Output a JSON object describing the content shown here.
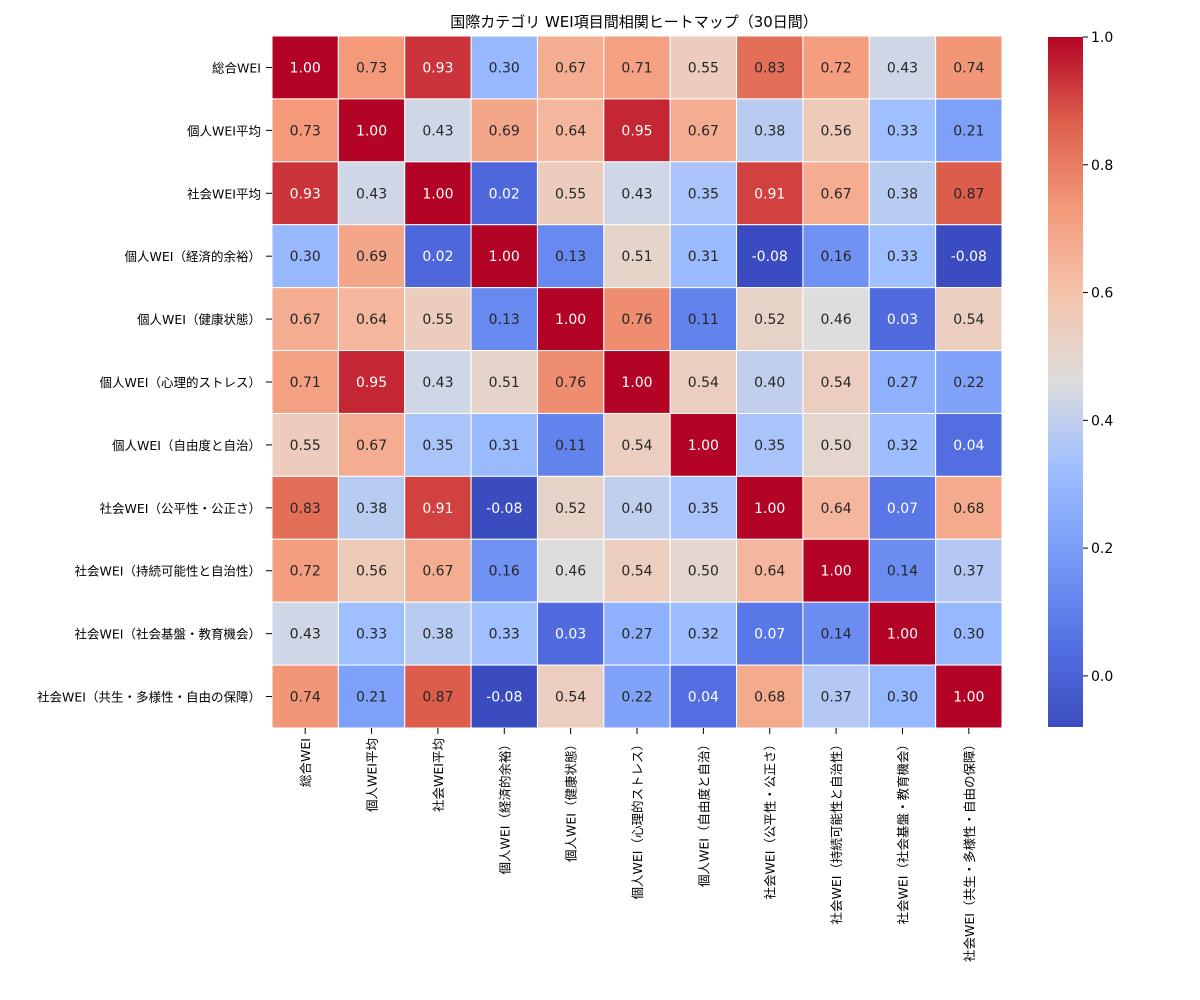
{
  "chart_data": {
    "type": "heatmap",
    "title": "国際カテゴリ WEI項目間相関ヒートマップ（30日間）",
    "labels": [
      "総合WEI",
      "個人WEI平均",
      "社会WEI平均",
      "個人WEI（経済的余裕）",
      "個人WEI（健康状態）",
      "個人WEI（心理的ストレス）",
      "個人WEI（自由度と自治）",
      "社会WEI（公平性・公正さ）",
      "社会WEI（持続可能性と自治性）",
      "社会WEI（社会基盤・教育機会）",
      "社会WEI（共生・多様性・自由の保障）"
    ],
    "matrix": [
      [
        1.0,
        0.73,
        0.93,
        0.3,
        0.67,
        0.71,
        0.55,
        0.83,
        0.72,
        0.43,
        0.74
      ],
      [
        0.73,
        1.0,
        0.43,
        0.69,
        0.64,
        0.95,
        0.67,
        0.38,
        0.56,
        0.33,
        0.21
      ],
      [
        0.93,
        0.43,
        1.0,
        0.02,
        0.55,
        0.43,
        0.35,
        0.91,
        0.67,
        0.38,
        0.87
      ],
      [
        0.3,
        0.69,
        0.02,
        1.0,
        0.13,
        0.51,
        0.31,
        -0.08,
        0.16,
        0.33,
        -0.08
      ],
      [
        0.67,
        0.64,
        0.55,
        0.13,
        1.0,
        0.76,
        0.11,
        0.52,
        0.46,
        0.03,
        0.54
      ],
      [
        0.71,
        0.95,
        0.43,
        0.51,
        0.76,
        1.0,
        0.54,
        0.4,
        0.54,
        0.27,
        0.22
      ],
      [
        0.55,
        0.67,
        0.35,
        0.31,
        0.11,
        0.54,
        1.0,
        0.35,
        0.5,
        0.32,
        0.04
      ],
      [
        0.83,
        0.38,
        0.91,
        -0.08,
        0.52,
        0.4,
        0.35,
        1.0,
        0.64,
        0.07,
        0.68
      ],
      [
        0.72,
        0.56,
        0.67,
        0.16,
        0.46,
        0.54,
        0.5,
        0.64,
        1.0,
        0.14,
        0.37
      ],
      [
        0.43,
        0.33,
        0.38,
        0.33,
        0.03,
        0.27,
        0.32,
        0.07,
        0.14,
        1.0,
        0.3
      ],
      [
        0.74,
        0.21,
        0.87,
        -0.08,
        0.54,
        0.22,
        0.04,
        0.68,
        0.37,
        0.3,
        1.0
      ]
    ],
    "value_range": [
      -0.08,
      1.0
    ],
    "colormap": "coolwarm",
    "colorbar_ticks": [
      "0.0",
      "0.2",
      "0.4",
      "0.6",
      "0.8",
      "1.0"
    ],
    "annotated": true,
    "value_format": "0.00"
  },
  "colors": {
    "cold": "#3b4cc0",
    "neutral": "#dddddd",
    "hot": "#b40426",
    "grid_line": "#ffffff"
  }
}
